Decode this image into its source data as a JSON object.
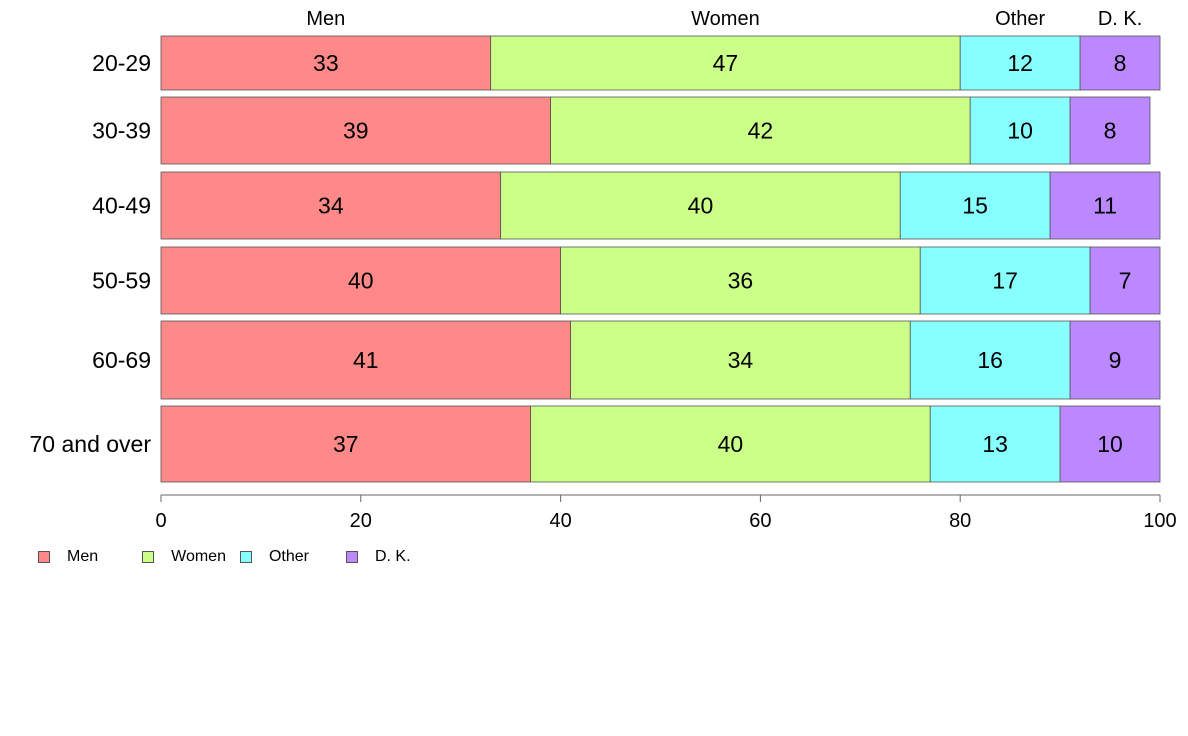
{
  "chart_data": {
    "type": "bar",
    "orientation": "horizontal",
    "stacked": true,
    "categories": [
      "20-29",
      "30-39",
      "40-49",
      "50-59",
      "60-69",
      "70 and over"
    ],
    "series": [
      {
        "name": "Men",
        "values": [
          33,
          39,
          34,
          40,
          41,
          37
        ],
        "color": "#ff8888"
      },
      {
        "name": "Women",
        "values": [
          47,
          42,
          40,
          36,
          34,
          40
        ],
        "color": "#ccff88"
      },
      {
        "name": "Other",
        "values": [
          12,
          10,
          15,
          17,
          16,
          13
        ],
        "color": "#88ffff"
      },
      {
        "name": "D. K.",
        "values": [
          8,
          8,
          11,
          7,
          9,
          10
        ],
        "color": "#bb88ff"
      }
    ],
    "top_labels": [
      "Men",
      "Women",
      "Other",
      "D. K."
    ],
    "xlim": [
      0,
      100
    ],
    "xticks": [
      0,
      20,
      40,
      60,
      80,
      100
    ],
    "grid": false,
    "legend_position": "bottom-left"
  }
}
